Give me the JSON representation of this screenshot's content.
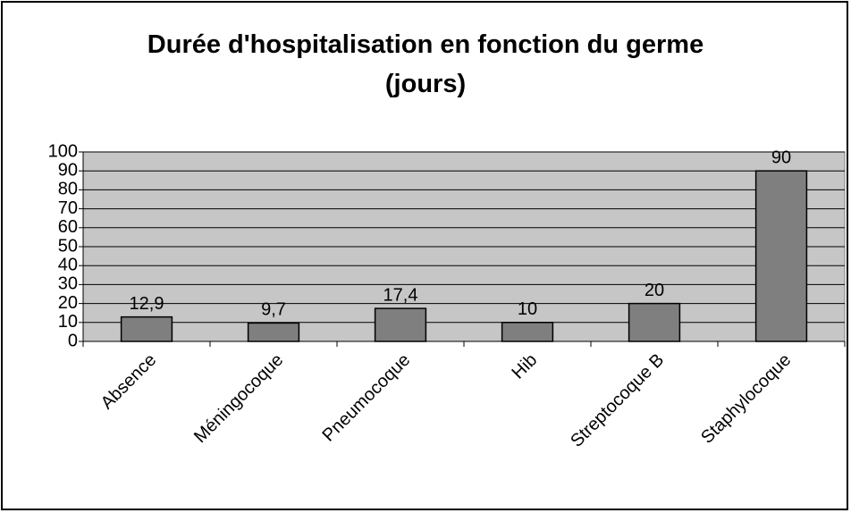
{
  "chart_data": {
    "type": "bar",
    "title": "Durée d'hospitalisation en fonction du germe (jours)",
    "categories": [
      "Absence",
      "Méningocoque",
      "Pneumocoque",
      "Hib",
      "Streptocoque B",
      "Staphylocoque"
    ],
    "values": [
      12.9,
      9.7,
      17.4,
      10,
      20,
      90
    ],
    "value_labels": [
      "12,9",
      "9,7",
      "17,4",
      "10",
      "20",
      "90"
    ],
    "color": "#7f7f7f",
    "ylim": [
      0,
      100
    ],
    "yticks": [
      0,
      10,
      20,
      30,
      40,
      50,
      60,
      70,
      80,
      90,
      100
    ],
    "grid": true
  }
}
